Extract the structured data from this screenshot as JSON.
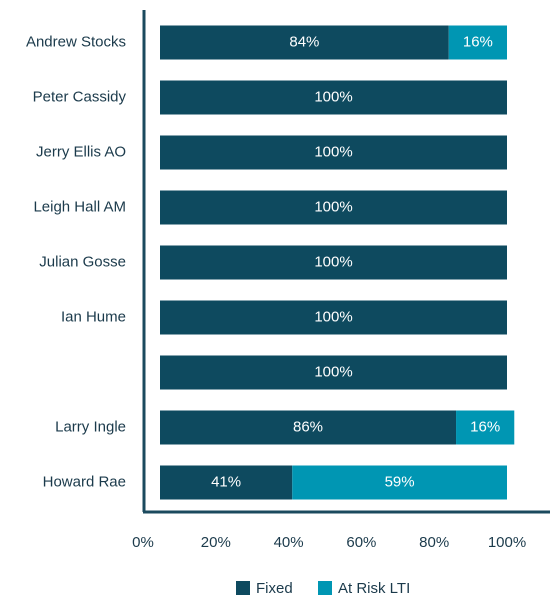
{
  "chart_data": {
    "type": "stacked-bar-horizontal",
    "categories": [
      "Andrew Stocks",
      "Peter Cassidy",
      "Jerry Ellis AO",
      "Leigh Hall AM",
      "Julian Gosse",
      "Ian Hume",
      null,
      "Larry Ingle",
      "Howard Rae"
    ],
    "series": [
      {
        "name": "Fixed",
        "color": "#0e4a5f",
        "values": [
          84,
          100,
          100,
          100,
          100,
          100,
          100,
          86,
          41
        ],
        "value_labels": [
          "84%",
          "100%",
          "100%",
          "100%",
          "100%",
          "100%",
          "100%",
          "86%",
          "41%"
        ]
      },
      {
        "name": "At Risk LTI",
        "color": "#0096b3",
        "values": [
          16,
          null,
          null,
          null,
          null,
          null,
          null,
          16,
          59
        ],
        "value_labels": [
          "16%",
          null,
          null,
          null,
          null,
          null,
          null,
          "16%",
          "59%"
        ]
      }
    ],
    "xlim": [
      0,
      100
    ],
    "xticks": [
      {
        "value": 0,
        "label": "0%"
      },
      {
        "value": 20,
        "label": "20%"
      },
      {
        "value": 40,
        "label": "40%"
      },
      {
        "value": 60,
        "label": "60%"
      },
      {
        "value": 80,
        "label": "80%"
      },
      {
        "value": 100,
        "label": "100%"
      }
    ],
    "legend": "bottom"
  }
}
